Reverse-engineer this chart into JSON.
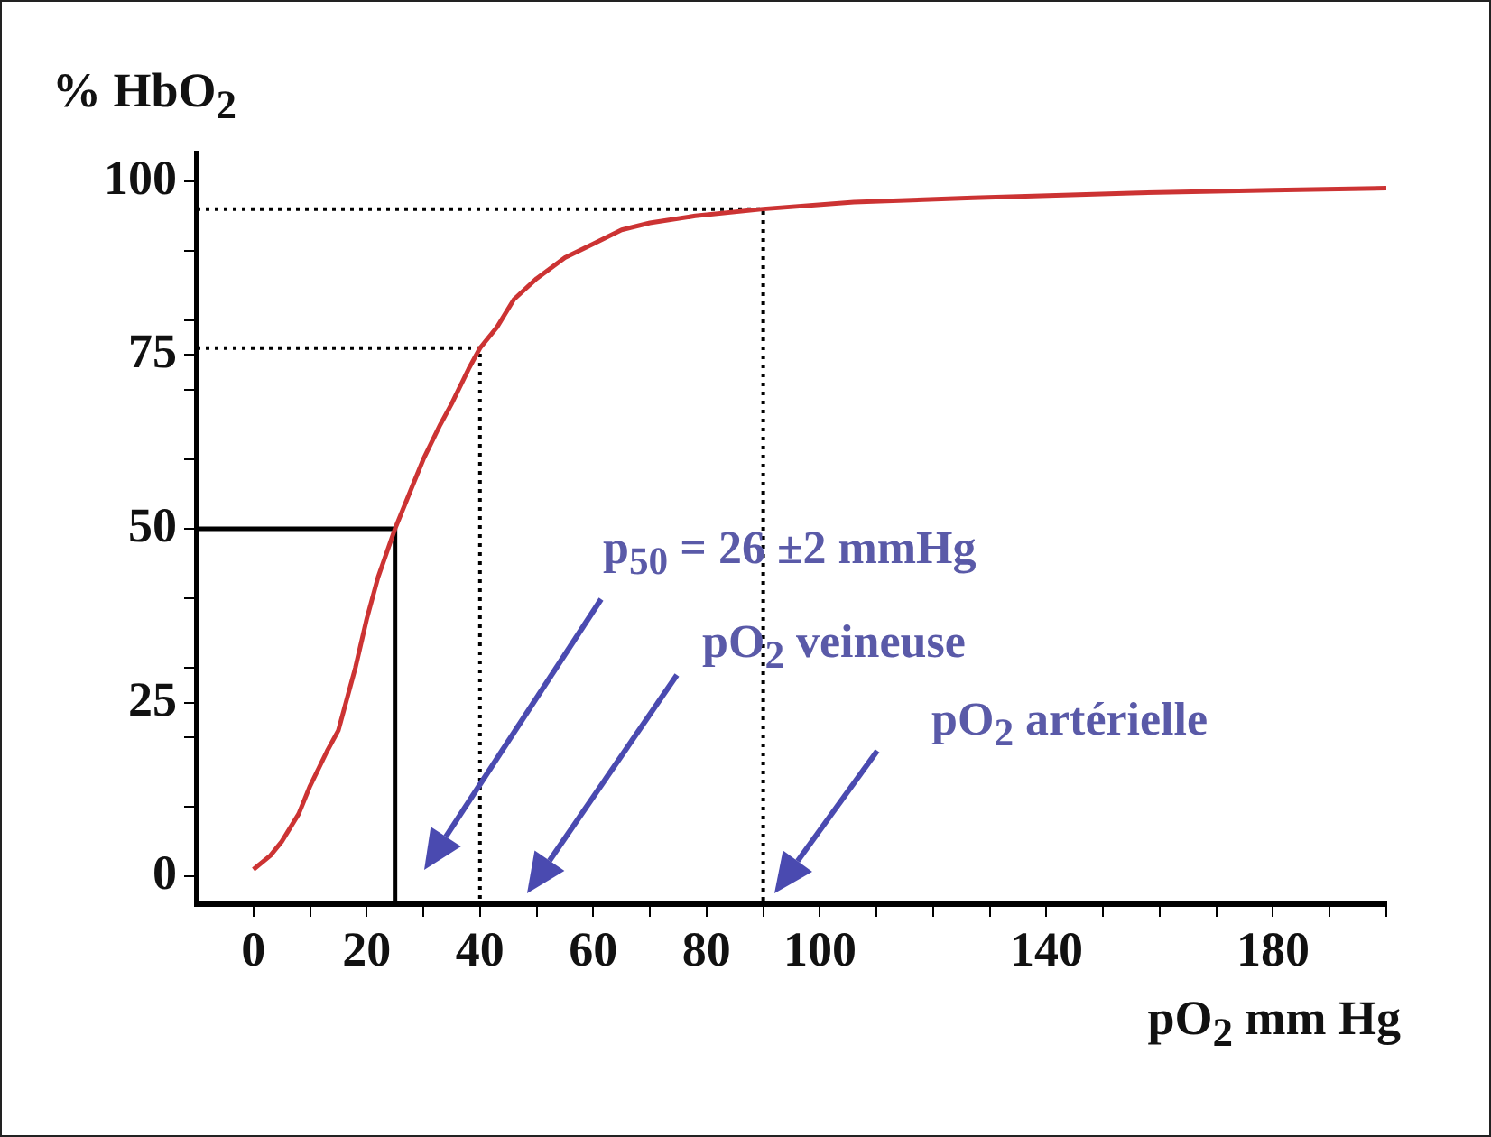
{
  "chart_data": {
    "type": "line",
    "ylabel": "% HbO$_{2}$",
    "xlabel": "pO$_{2}$ mm Hg",
    "marker": "none",
    "xlim": [
      -10,
      200
    ],
    "xticks": [
      0,
      {
        "value": 10,
        "label": null
      },
      20,
      {
        "value": 30,
        "label": null
      },
      40,
      {
        "value": 50,
        "label": null
      },
      60,
      {
        "value": 70,
        "label": null
      },
      80,
      {
        "value": 90,
        "label": null
      },
      100,
      {
        "value": 110,
        "label": null
      },
      {
        "value": 120,
        "label": null
      },
      {
        "value": 130,
        "label": null
      },
      140,
      {
        "value": 150,
        "label": null
      },
      {
        "value": 160,
        "label": null
      },
      {
        "value": 170,
        "label": null
      },
      180,
      {
        "value": 190,
        "label": null
      },
      {
        "value": 200,
        "label": null
      }
    ],
    "ylim": [
      -4,
      104
    ],
    "yticks": [
      0,
      {
        "value": 10,
        "label": null
      },
      {
        "value": 20,
        "label": null
      },
      25,
      {
        "value": 30,
        "label": null
      },
      {
        "value": 40,
        "label": null
      },
      50,
      {
        "value": 60,
        "label": null
      },
      {
        "value": 70,
        "label": null
      },
      75,
      {
        "value": 80,
        "label": null
      },
      {
        "value": 90,
        "label": null
      },
      100
    ],
    "series": [
      {
        "color": "#cc3333",
        "line_style": "solid",
        "x": [
          0,
          3,
          5,
          8,
          10,
          13,
          15,
          18,
          20,
          22,
          25,
          28,
          30,
          33,
          35,
          38,
          40,
          43,
          46,
          50,
          55,
          60,
          65,
          70,
          78,
          90,
          106,
          127,
          155,
          180,
          200
        ],
        "values": [
          1,
          3,
          5,
          9,
          13,
          18,
          21,
          30,
          37,
          43,
          50,
          56,
          60,
          65,
          68,
          73,
          76,
          79,
          83,
          86,
          89,
          91,
          93,
          94,
          95,
          96,
          97,
          97.6,
          98.3,
          98.7,
          99
        ]
      },
      {
        "color": "#000000",
        "line_style": "solid",
        "x": [
          -10,
          25,
          25
        ],
        "values": [
          50,
          50,
          -4
        ]
      },
      {
        "color": "#000000",
        "line_style": "dotted",
        "x": [
          -10,
          40,
          40
        ],
        "values": [
          76,
          76,
          -4
        ]
      },
      {
        "color": "#000000",
        "line_style": "dotted",
        "x": [
          -10,
          90,
          90
        ],
        "values": [
          96,
          96,
          -4
        ]
      }
    ],
    "annotations": [
      "p$_{50}$ =  26 ±2 mmHg",
      "pO$_{2}$ veineuse",
      "pO$_{2}$ artérielle"
    ]
  }
}
